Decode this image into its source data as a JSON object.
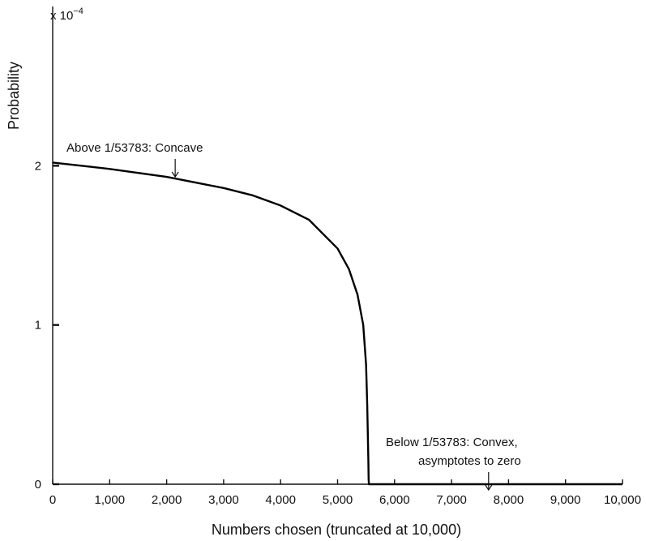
{
  "chart_data": {
    "type": "line",
    "title": "",
    "xlabel": "Numbers chosen (truncated at 10,000)",
    "ylabel": "Probability",
    "y_scale_prefix": "x 10",
    "y_scale_exponent": "−4",
    "xlim": [
      0,
      10000
    ],
    "ylim": [
      0,
      3
    ],
    "grid": false,
    "x_ticks": [
      {
        "value": 0,
        "label": "0"
      },
      {
        "value": 1000,
        "label": "1,000"
      },
      {
        "value": 2000,
        "label": "2,000"
      },
      {
        "value": 3000,
        "label": "3,000"
      },
      {
        "value": 4000,
        "label": "4,000"
      },
      {
        "value": 5000,
        "label": "5,000"
      },
      {
        "value": 6000,
        "label": "6,000"
      },
      {
        "value": 7000,
        "label": "7,000"
      },
      {
        "value": 8000,
        "label": "8,000"
      },
      {
        "value": 9000,
        "label": "9,000"
      },
      {
        "value": 10000,
        "label": "10,000"
      }
    ],
    "y_ticks": [
      {
        "value": 0,
        "label": "0"
      },
      {
        "value": 1,
        "label": "1"
      },
      {
        "value": 2,
        "label": "2"
      }
    ],
    "series": [
      {
        "x": [
          0,
          500,
          1000,
          1500,
          2000,
          2500,
          3000,
          3500,
          4000,
          4500,
          5000,
          5200,
          5350,
          5450,
          5500,
          5520,
          5540,
          5545,
          5550,
          6000,
          7000,
          8000,
          9000,
          10000
        ],
        "y": [
          2.02,
          2.0,
          1.98,
          1.955,
          1.93,
          1.895,
          1.86,
          1.815,
          1.75,
          1.66,
          1.48,
          1.35,
          1.19,
          1.0,
          0.75,
          0.5,
          0.15,
          0.03,
          0.0,
          0.0,
          0.0,
          0.0,
          0.0,
          0.0
        ]
      }
    ],
    "annotations": [
      {
        "lines": [
          "Above 1/53783: Concave"
        ],
        "arrow_x": 2150,
        "arrow_y": 1.93
      },
      {
        "lines": [
          "Below 1/53783: Convex,",
          "asymptotes to zero"
        ],
        "arrow_x": 7650,
        "arrow_y": 0.03
      }
    ]
  }
}
